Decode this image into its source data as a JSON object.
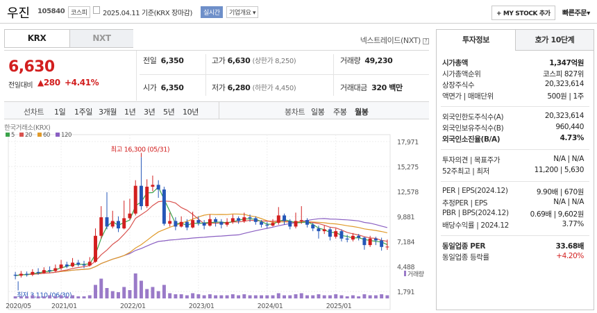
{
  "header": {
    "name": "우진",
    "code": "105840",
    "market_badge": "코스피",
    "date_text": "2025.04.11 기준(KRX 장마감)",
    "realtime_badge": "실시간",
    "company_menu": "기업개요",
    "mystock_button": "+ MY STOCK 추가",
    "quick_order": "빠른주문"
  },
  "tabs": {
    "krx": "KRX",
    "nxt": "NXT",
    "nxt_link": "넥스트레이드(NXT)"
  },
  "price": {
    "current": "6,630",
    "change_label": "전일대비",
    "change": "▲280",
    "change_pct": "+4.41%"
  },
  "summary": {
    "prev_label": "전일",
    "prev": "6,350",
    "open_label": "시가",
    "open": "6,350",
    "high_label": "고가",
    "high": "6,630",
    "high_limit": "(상한가 8,250)",
    "low_label": "저가",
    "low": "6,280",
    "low_limit": "(하한가 4,450)",
    "volume_label": "거래량",
    "volume": "49,230",
    "amount_label": "거래대금",
    "amount": "320 백만"
  },
  "period": {
    "line_label": "선차트",
    "items": [
      "1일",
      "1주일",
      "3개월",
      "1년",
      "3년",
      "5년",
      "10년"
    ],
    "candle_label": "봉차트",
    "candle_items": [
      "일봉",
      "주봉",
      "월봉"
    ],
    "active": "월봉"
  },
  "chart_data": {
    "type": "candlestick",
    "source_label": "한국거래소(KRX)",
    "ma": [
      {
        "name": "5",
        "color": "#3aa34a"
      },
      {
        "name": "20",
        "color": "#d9534f"
      },
      {
        "name": "60",
        "color": "#e09a2a"
      },
      {
        "name": "120",
        "color": "#8a5fc2"
      }
    ],
    "y_ticks": [
      17971,
      15275,
      12578,
      9881,
      7184,
      4488,
      1791
    ],
    "y_tick_labels": [
      "17,971",
      "15,275",
      "12,578",
      "9,881",
      "7,184",
      "4,488",
      "1,791"
    ],
    "ylim": [
      1791,
      17971
    ],
    "x_labels": [
      "2020/05",
      "2021/01",
      "2022/01",
      "2023/01",
      "2024/01",
      "2025/01"
    ],
    "max_annotation": "최고 16,300 (05/31)",
    "min_annotation": "최저 3,110 (06/30)",
    "volume_label": "거래량",
    "candles": [
      {
        "o": 3600,
        "c": 3500,
        "h": 3900,
        "l": 3110
      },
      {
        "o": 3500,
        "c": 3700,
        "h": 4000,
        "l": 3300
      },
      {
        "o": 3700,
        "c": 3600,
        "h": 3950,
        "l": 3400
      },
      {
        "o": 3600,
        "c": 3900,
        "h": 4200,
        "l": 3450
      },
      {
        "o": 3900,
        "c": 3800,
        "h": 4300,
        "l": 3600
      },
      {
        "o": 3800,
        "c": 4100,
        "h": 4400,
        "l": 3700
      },
      {
        "o": 4100,
        "c": 4000,
        "h": 4500,
        "l": 3800
      },
      {
        "o": 4000,
        "c": 4300,
        "h": 4700,
        "l": 3900
      },
      {
        "o": 4300,
        "c": 4700,
        "h": 5200,
        "l": 4100
      },
      {
        "o": 4700,
        "c": 4500,
        "h": 5000,
        "l": 4300
      },
      {
        "o": 4500,
        "c": 4900,
        "h": 5400,
        "l": 4400
      },
      {
        "o": 4900,
        "c": 4700,
        "h": 5200,
        "l": 4500
      },
      {
        "o": 4700,
        "c": 4600,
        "h": 5100,
        "l": 4300
      },
      {
        "o": 4600,
        "c": 5000,
        "h": 5500,
        "l": 4500
      },
      {
        "o": 5000,
        "c": 7800,
        "h": 8600,
        "l": 4900
      },
      {
        "o": 7800,
        "c": 9800,
        "h": 11000,
        "l": 7500
      },
      {
        "o": 9800,
        "c": 8800,
        "h": 12500,
        "l": 8500
      },
      {
        "o": 8800,
        "c": 9400,
        "h": 10500,
        "l": 8600
      },
      {
        "o": 9400,
        "c": 8600,
        "h": 9900,
        "l": 8200
      },
      {
        "o": 8600,
        "c": 9700,
        "h": 11600,
        "l": 8500
      },
      {
        "o": 9700,
        "c": 10200,
        "h": 11800,
        "l": 9500
      },
      {
        "o": 10200,
        "c": 13200,
        "h": 13800,
        "l": 10000
      },
      {
        "o": 13200,
        "c": 11000,
        "h": 16300,
        "l": 10600
      },
      {
        "o": 11000,
        "c": 13100,
        "h": 13900,
        "l": 10800
      },
      {
        "o": 13100,
        "c": 13300,
        "h": 14300,
        "l": 12600
      },
      {
        "o": 13300,
        "c": 12800,
        "h": 13800,
        "l": 11900
      },
      {
        "o": 12800,
        "c": 9100,
        "h": 13100,
        "l": 8900
      },
      {
        "o": 9100,
        "c": 9400,
        "h": 10300,
        "l": 8800
      },
      {
        "o": 9400,
        "c": 8800,
        "h": 9800,
        "l": 8400
      },
      {
        "o": 8800,
        "c": 9300,
        "h": 9900,
        "l": 8700
      },
      {
        "o": 9300,
        "c": 8700,
        "h": 9600,
        "l": 8400
      },
      {
        "o": 8700,
        "c": 9500,
        "h": 10400,
        "l": 8600
      },
      {
        "o": 9500,
        "c": 9200,
        "h": 9900,
        "l": 8900
      },
      {
        "o": 9200,
        "c": 8900,
        "h": 9500,
        "l": 8500
      },
      {
        "o": 8900,
        "c": 9600,
        "h": 10100,
        "l": 8800
      },
      {
        "o": 9600,
        "c": 9300,
        "h": 9800,
        "l": 8800
      },
      {
        "o": 9300,
        "c": 9000,
        "h": 9600,
        "l": 8600
      },
      {
        "o": 9000,
        "c": 9300,
        "h": 9700,
        "l": 8800
      },
      {
        "o": 9300,
        "c": 9700,
        "h": 10100,
        "l": 9100
      },
      {
        "o": 9700,
        "c": 9400,
        "h": 9900,
        "l": 9100
      },
      {
        "o": 9400,
        "c": 9800,
        "h": 10300,
        "l": 9200
      },
      {
        "o": 9800,
        "c": 9700,
        "h": 10100,
        "l": 9300
      },
      {
        "o": 9700,
        "c": 9300,
        "h": 9900,
        "l": 9000
      },
      {
        "o": 9300,
        "c": 9000,
        "h": 9500,
        "l": 8700
      },
      {
        "o": 9000,
        "c": 8900,
        "h": 9300,
        "l": 8600
      },
      {
        "o": 8900,
        "c": 9200,
        "h": 9600,
        "l": 8800
      },
      {
        "o": 9200,
        "c": 10000,
        "h": 10900,
        "l": 9000
      },
      {
        "o": 10000,
        "c": 9400,
        "h": 10200,
        "l": 9000
      },
      {
        "o": 9400,
        "c": 8800,
        "h": 9600,
        "l": 8500
      },
      {
        "o": 8800,
        "c": 9400,
        "h": 10300,
        "l": 8600
      },
      {
        "o": 9400,
        "c": 9500,
        "h": 11000,
        "l": 9100
      },
      {
        "o": 9500,
        "c": 9000,
        "h": 9700,
        "l": 8700
      },
      {
        "o": 9000,
        "c": 8600,
        "h": 9200,
        "l": 8300
      },
      {
        "o": 8600,
        "c": 8300,
        "h": 8900,
        "l": 7500
      },
      {
        "o": 8300,
        "c": 8500,
        "h": 8900,
        "l": 8000
      },
      {
        "o": 8500,
        "c": 7700,
        "h": 8700,
        "l": 7300
      },
      {
        "o": 7700,
        "c": 8300,
        "h": 8600,
        "l": 7500
      },
      {
        "o": 8300,
        "c": 7500,
        "h": 8500,
        "l": 7200
      },
      {
        "o": 7500,
        "c": 7400,
        "h": 7900,
        "l": 7100
      },
      {
        "o": 7400,
        "c": 7800,
        "h": 8100,
        "l": 7200
      },
      {
        "o": 7800,
        "c": 7600,
        "h": 8000,
        "l": 7300
      },
      {
        "o": 7600,
        "c": 6800,
        "h": 7700,
        "l": 6300
      },
      {
        "o": 6800,
        "c": 7500,
        "h": 7800,
        "l": 6600
      },
      {
        "o": 7500,
        "c": 7300,
        "h": 7700,
        "l": 6800
      },
      {
        "o": 7300,
        "c": 6600,
        "h": 7600,
        "l": 6200
      },
      {
        "o": 6600,
        "c": 6630,
        "h": 7400,
        "l": 6280
      }
    ],
    "volumes": [
      2,
      2,
      2,
      3,
      2,
      2,
      3,
      2,
      3,
      2,
      3,
      2,
      2,
      3,
      13,
      19,
      10,
      7,
      6,
      11,
      8,
      24,
      17,
      9,
      11,
      7,
      13,
      5,
      4,
      4,
      3,
      5,
      4,
      3,
      4,
      3,
      3,
      3,
      4,
      3,
      4,
      3,
      3,
      3,
      3,
      3,
      5,
      3,
      3,
      4,
      5,
      3,
      3,
      4,
      3,
      3,
      4,
      3,
      2,
      3,
      2,
      4,
      3,
      3,
      4,
      3
    ]
  },
  "invest": {
    "tab_active": "투자정보",
    "tab_other": "호가 10단계",
    "rows": [
      {
        "l": "시가총액",
        "r": "1,347억원"
      },
      {
        "l": "시가총액순위",
        "r": "코스피 827위"
      },
      {
        "l": "상장주식수",
        "r": "20,323,614"
      },
      {
        "l": "액면가 | 매매단위",
        "r": "500원 | 1주"
      },
      {
        "l": "외국인한도주식수(A)",
        "r": "20,323,614"
      },
      {
        "l": "외국인보유주식수(B)",
        "r": "960,440"
      },
      {
        "l": "외국인소진율(B/A)",
        "r": "4.73%"
      },
      {
        "l": "투자의견 | 목표주가",
        "r": "N/A | N/A"
      },
      {
        "l": "52주최고 | 최저",
        "r": "11,200 | 5,630"
      },
      {
        "l": "PER | EPS(2024.12)",
        "r": "9.90배 | 670원"
      },
      {
        "l": "추정PER | EPS",
        "r": "N/A | N/A"
      },
      {
        "l": "PBR | BPS(2024.12)",
        "r": "0.69배 | 9,602원"
      },
      {
        "l": "배당수익률 | 2024.12",
        "r": "3.77%"
      },
      {
        "l": "동일업종 PER",
        "r": "33.68배"
      },
      {
        "l": "동일업종 등락률",
        "r": "+4.20%"
      }
    ]
  },
  "colors": {
    "up": "#d21f1f",
    "down": "#2557b8",
    "accent": "#6e8fc9"
  }
}
